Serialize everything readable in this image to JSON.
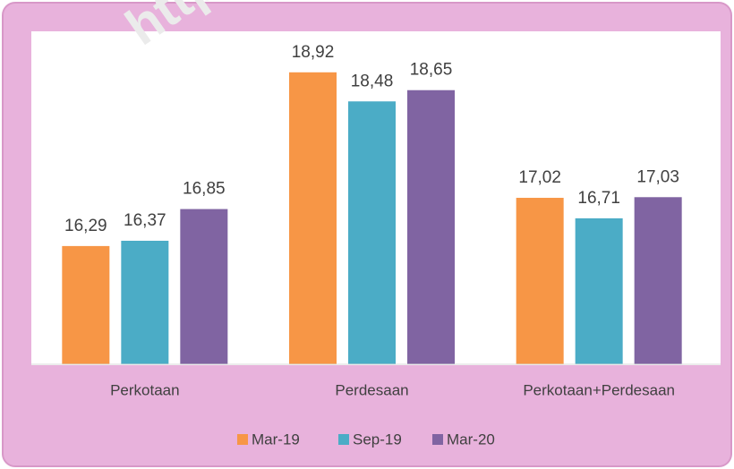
{
  "chart_data": {
    "type": "bar",
    "watermark": "https:/",
    "categories": [
      "Perkotaan",
      "Perdesaan",
      "Perkotaan+Perdesaan"
    ],
    "series": [
      {
        "name": "Mar-19",
        "color": "#f79646",
        "values": [
          16.29,
          18.92,
          17.02
        ],
        "value_labels": [
          "16,29",
          "18,92",
          "17,02"
        ]
      },
      {
        "name": "Sep-19",
        "color": "#4bacc6",
        "values": [
          16.37,
          18.48,
          16.71
        ],
        "value_labels": [
          "16,37",
          "18,48",
          "16,71"
        ]
      },
      {
        "name": "Mar-20",
        "color": "#8064a2",
        "values": [
          16.85,
          18.65,
          17.03
        ],
        "value_labels": [
          "16,85",
          "18,65",
          "17,03"
        ]
      }
    ],
    "ylim": [
      14.5,
      19.5
    ],
    "legend": "bottom"
  }
}
